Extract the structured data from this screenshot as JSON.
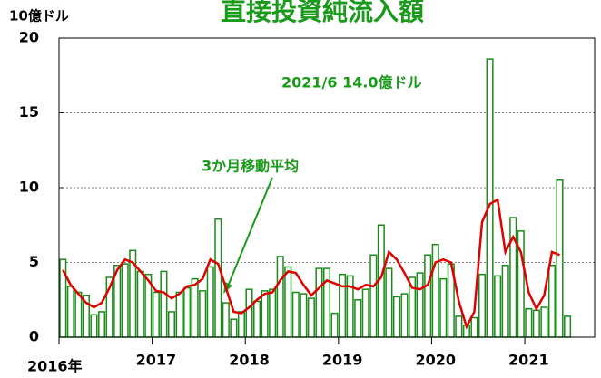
{
  "chart_data": {
    "type": "bar",
    "title": "直接投資純流入額",
    "y_label": "10億ドル",
    "annotation": "2021/6  14.0億ドル",
    "categories": [
      "2016年",
      null,
      null,
      null,
      null,
      null,
      null,
      null,
      null,
      null,
      null,
      null,
      "2017",
      null,
      null,
      null,
      null,
      null,
      null,
      null,
      null,
      null,
      null,
      null,
      "2018",
      null,
      null,
      null,
      null,
      null,
      null,
      null,
      null,
      null,
      null,
      null,
      "2019",
      null,
      null,
      null,
      null,
      null,
      null,
      null,
      null,
      null,
      null,
      null,
      "2020",
      null,
      null,
      null,
      null,
      null,
      null,
      null,
      null,
      null,
      null,
      null,
      "2021",
      null,
      null,
      null,
      null,
      null,
      null,
      null,
      null
    ],
    "series": [
      {
        "type": "bar",
        "color": "#1a8a1a",
        "values": [
          5.2,
          3.4,
          3.0,
          2.8,
          1.5,
          1.7,
          4.0,
          4.8,
          4.9,
          5.8,
          4.4,
          4.2,
          3.0,
          4.4,
          1.7,
          3.0,
          3.3,
          3.9,
          3.1,
          4.7,
          7.9,
          2.3,
          1.2,
          1.7,
          3.2,
          2.4,
          3.1,
          3.2,
          5.4,
          4.7,
          3.0,
          2.9,
          2.6,
          4.6,
          4.6,
          1.6,
          4.2,
          4.1,
          2.5,
          3.2,
          5.5,
          7.5,
          4.6,
          2.7,
          2.9,
          4.0,
          4.3,
          5.5,
          6.2,
          3.9,
          4.9,
          1.4,
          0.8,
          1.3,
          4.2,
          18.6,
          4.1,
          4.8,
          8.0,
          7.1,
          1.9,
          1.8,
          2.0,
          4.8,
          10.5,
          1.4,
          null,
          null,
          null
        ]
      },
      {
        "type": "line",
        "name": "3か月移動平均",
        "color": "#e00000",
        "values": [
          4.5,
          3.5,
          2.9,
          2.3,
          2.0,
          2.3,
          3.3,
          4.5,
          5.2,
          5.0,
          4.4,
          3.8,
          3.1,
          3.0,
          2.6,
          2.9,
          3.4,
          3.5,
          3.9,
          5.2,
          4.9,
          3.3,
          1.7,
          1.6,
          2.0,
          2.5,
          2.9,
          3.0,
          3.8,
          4.4,
          4.3,
          3.5,
          2.8,
          3.3,
          3.8,
          3.6,
          3.4,
          3.4,
          3.2,
          3.5,
          3.4,
          4.0,
          5.7,
          5.2,
          4.3,
          3.3,
          3.2,
          3.5,
          5.0,
          5.2,
          5.0,
          2.4,
          0.7,
          1.7,
          7.7,
          8.9,
          9.2,
          5.7,
          6.7,
          5.7,
          3.0,
          1.9,
          2.8,
          5.7,
          5.5,
          null,
          null,
          null,
          null
        ]
      }
    ],
    "ylim": [
      0,
      20
    ],
    "yticks": [
      0,
      5,
      10,
      15,
      20
    ],
    "grid": true
  }
}
